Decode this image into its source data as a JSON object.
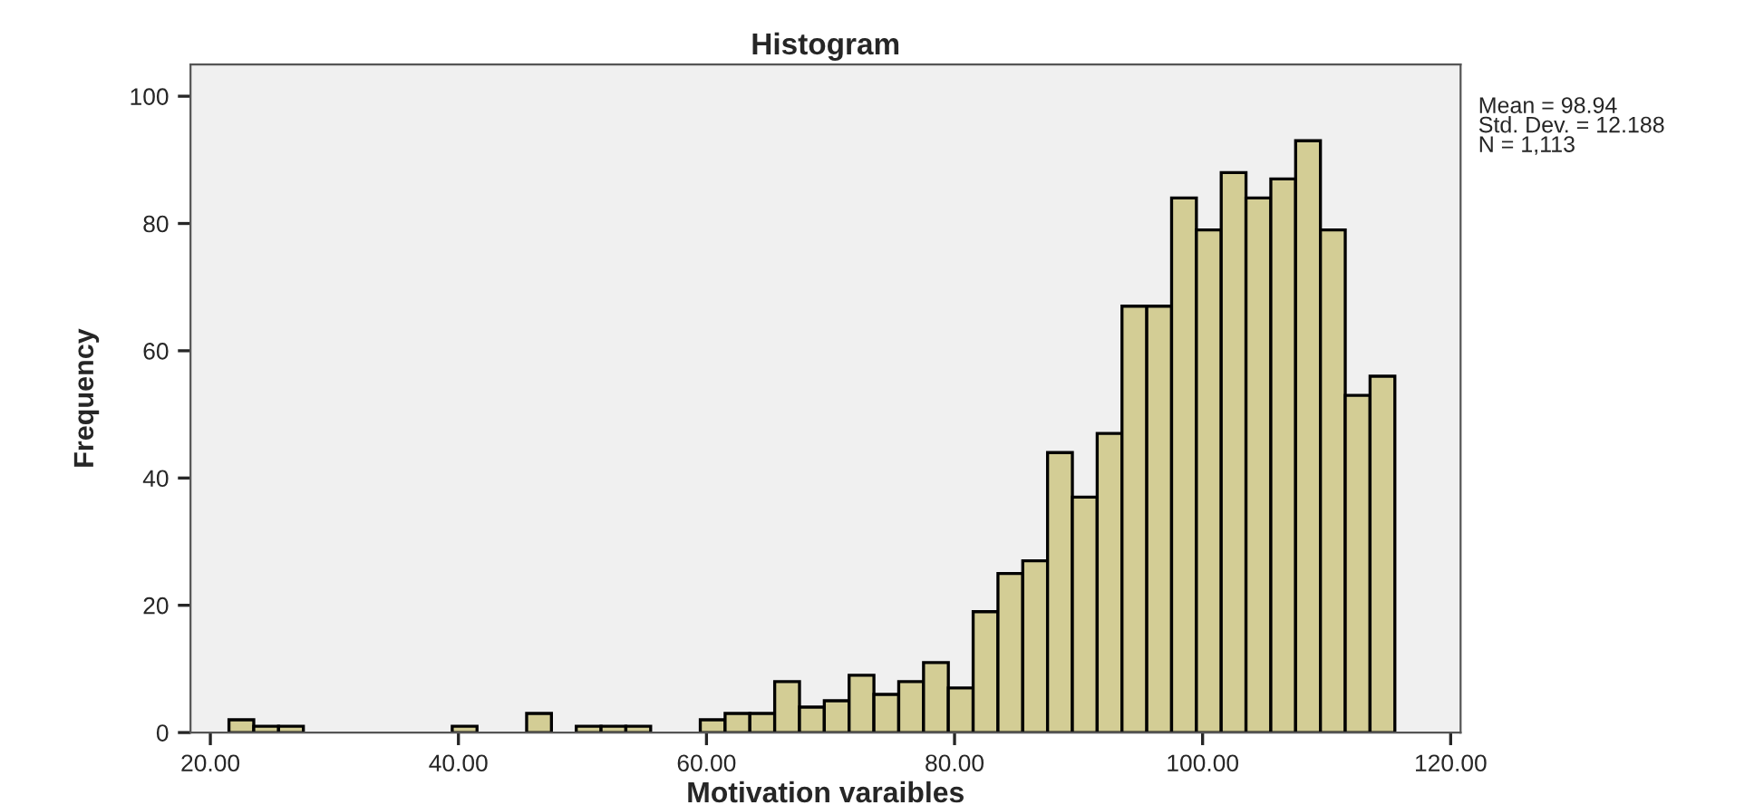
{
  "chart_data": {
    "type": "histogram",
    "title": "Histogram",
    "xlabel": "Motivation varaibles",
    "ylabel": "Frequency",
    "bins": [
      21.5,
      23.5,
      25.5,
      27.5,
      29.5,
      31.5,
      33.5,
      35.5,
      37.5,
      39.5,
      41.5,
      43.5,
      45.5,
      47.5,
      49.5,
      51.5,
      53.5,
      55.5,
      57.5,
      59.5,
      61.5,
      63.5,
      65.5,
      67.5,
      69.5,
      71.5,
      73.5,
      75.5,
      77.5,
      79.5,
      81.5,
      83.5,
      85.5,
      87.5,
      89.5,
      91.5,
      93.5,
      95.5,
      97.5,
      99.5,
      101.5,
      103.5,
      105.5,
      107.5,
      109.5,
      111.5,
      113.5,
      115.5
    ],
    "values": [
      2,
      1,
      1,
      0,
      0,
      0,
      0,
      0,
      0,
      1,
      0,
      0,
      3,
      0,
      1,
      1,
      1,
      0,
      0,
      2,
      3,
      3,
      8,
      4,
      5,
      9,
      6,
      8,
      11,
      7,
      19,
      25,
      27,
      44,
      37,
      47,
      67,
      67,
      84,
      79,
      88,
      84,
      87,
      93,
      79,
      53,
      56
    ],
    "color": "#d3cd95",
    "xlim": [
      18.4,
      120.8
    ],
    "ylim": [
      0,
      105
    ],
    "xticks": [
      {
        "value": 20,
        "label": "20.00"
      },
      {
        "value": 40,
        "label": "40.00"
      },
      {
        "value": 60,
        "label": "60.00"
      },
      {
        "value": 80,
        "label": "80.00"
      },
      {
        "value": 100,
        "label": "100.00"
      },
      {
        "value": 120,
        "label": "120.00"
      }
    ],
    "yticks": [
      0,
      20,
      40,
      60,
      80,
      100
    ],
    "annotations": [
      "Mean = 98.94\nStd. Dev. = 12.188\nN = 1,113"
    ],
    "grid": false,
    "legend": false
  }
}
